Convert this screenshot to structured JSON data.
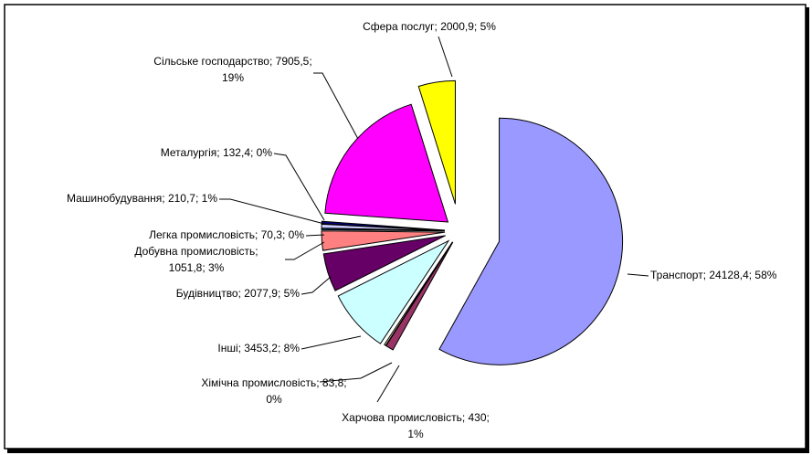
{
  "chart_data": {
    "type": "pie",
    "values": [
      24128.4,
      430,
      83.8,
      3453.2,
      2077.9,
      1051.8,
      70.3,
      210.7,
      132.4,
      7905.5,
      2000.9
    ],
    "value_labels": [
      "Транспорт; 24128,4; 58%",
      "Харчова промисловість; 430; 1%",
      "Хімічна промисловість; 83,8; 0%",
      "Інші; 3453,2; 8%",
      "Будівництво; 2077,9; 5%",
      "Добувна промисловість; 1051,8; 3%",
      "Легка промисловість; 70,3; 0%",
      "Машинобудування; 210,7; 1%",
      "Металургія; 132,4; 0%",
      "Сільське господарство; 7905,5; 19%",
      "Сфера послуг; 2000,9; 5%"
    ],
    "colors": [
      "#9999ff",
      "#993366",
      "#ffffcc",
      "#ccffff",
      "#660066",
      "#ff8080",
      "#0066cc",
      "#ccccff",
      "#000080",
      "#ff00ff",
      "#ffff00"
    ]
  }
}
